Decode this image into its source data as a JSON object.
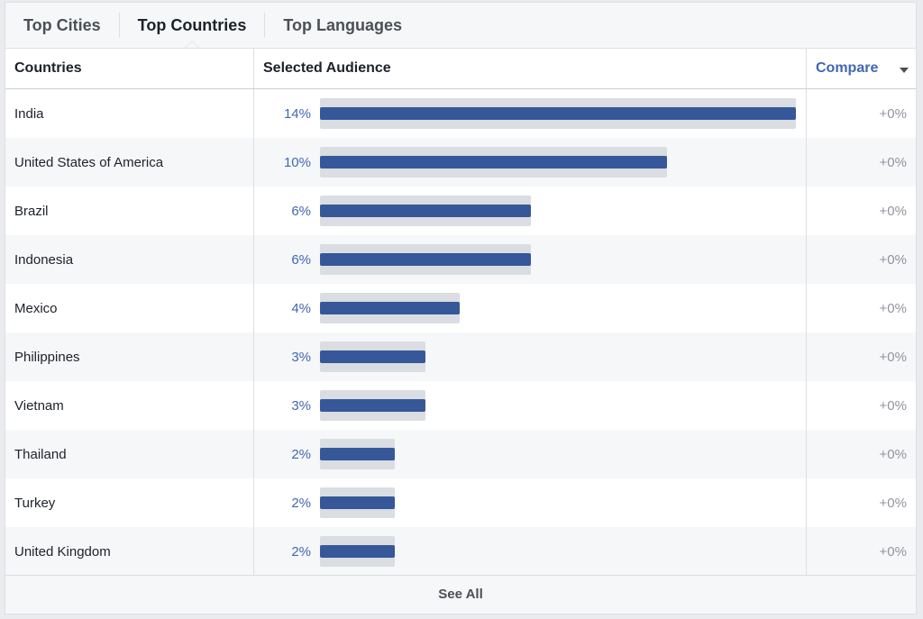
{
  "tabs": [
    {
      "label": "Top Cities",
      "active": false
    },
    {
      "label": "Top Countries",
      "active": true
    },
    {
      "label": "Top Languages",
      "active": false
    }
  ],
  "table": {
    "headers": {
      "country": "Countries",
      "audience": "Selected Audience",
      "compare": "Compare"
    },
    "max_value": 14,
    "rows": [
      {
        "country": "India",
        "pct": "14%",
        "value": 14,
        "compare": "+0%"
      },
      {
        "country": "United States of America",
        "pct": "10%",
        "value": 10.2,
        "compare": "+0%"
      },
      {
        "country": "Brazil",
        "pct": "6%",
        "value": 6.2,
        "compare": "+0%"
      },
      {
        "country": "Indonesia",
        "pct": "6%",
        "value": 6.2,
        "compare": "+0%"
      },
      {
        "country": "Mexico",
        "pct": "4%",
        "value": 4.1,
        "compare": "+0%"
      },
      {
        "country": "Philippines",
        "pct": "3%",
        "value": 3.1,
        "compare": "+0%"
      },
      {
        "country": "Vietnam",
        "pct": "3%",
        "value": 3.1,
        "compare": "+0%"
      },
      {
        "country": "Thailand",
        "pct": "2%",
        "value": 2.2,
        "compare": "+0%"
      },
      {
        "country": "Turkey",
        "pct": "2%",
        "value": 2.2,
        "compare": "+0%"
      },
      {
        "country": "United Kingdom",
        "pct": "2%",
        "value": 2.2,
        "compare": "+0%"
      }
    ]
  },
  "footer": {
    "see_all": "See All"
  },
  "colors": {
    "accent": "#4267b2",
    "bar": "#365899",
    "bar_track": "#dadde1"
  }
}
